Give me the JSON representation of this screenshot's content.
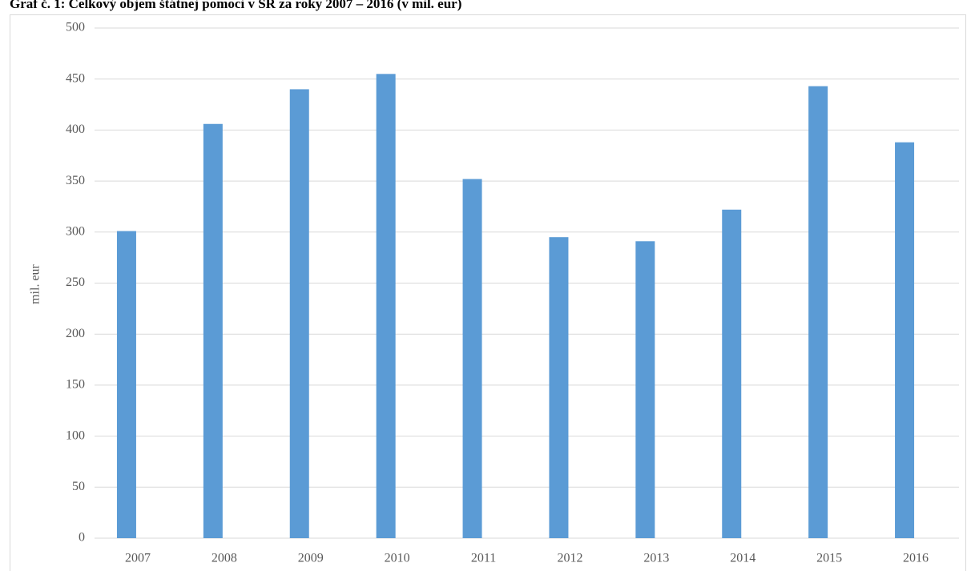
{
  "chart_data": {
    "type": "bar",
    "title": "Graf č. 1: Celkový objem štátnej pomoci v SR za roky 2007 – 2016 (v mil. eur)",
    "y_label": "mil. eur",
    "categories": [
      "2007",
      "2008",
      "2009",
      "2010",
      "2011",
      "2012",
      "2013",
      "2014",
      "2015",
      "2016"
    ],
    "values": [
      301,
      406,
      440,
      455,
      352,
      295,
      291,
      322,
      443,
      388
    ],
    "color": "#5b9bd5",
    "ylim": [
      0,
      500
    ],
    "yticks": [
      0,
      50,
      100,
      150,
      200,
      250,
      300,
      350,
      400,
      450,
      500
    ],
    "grid": true
  }
}
